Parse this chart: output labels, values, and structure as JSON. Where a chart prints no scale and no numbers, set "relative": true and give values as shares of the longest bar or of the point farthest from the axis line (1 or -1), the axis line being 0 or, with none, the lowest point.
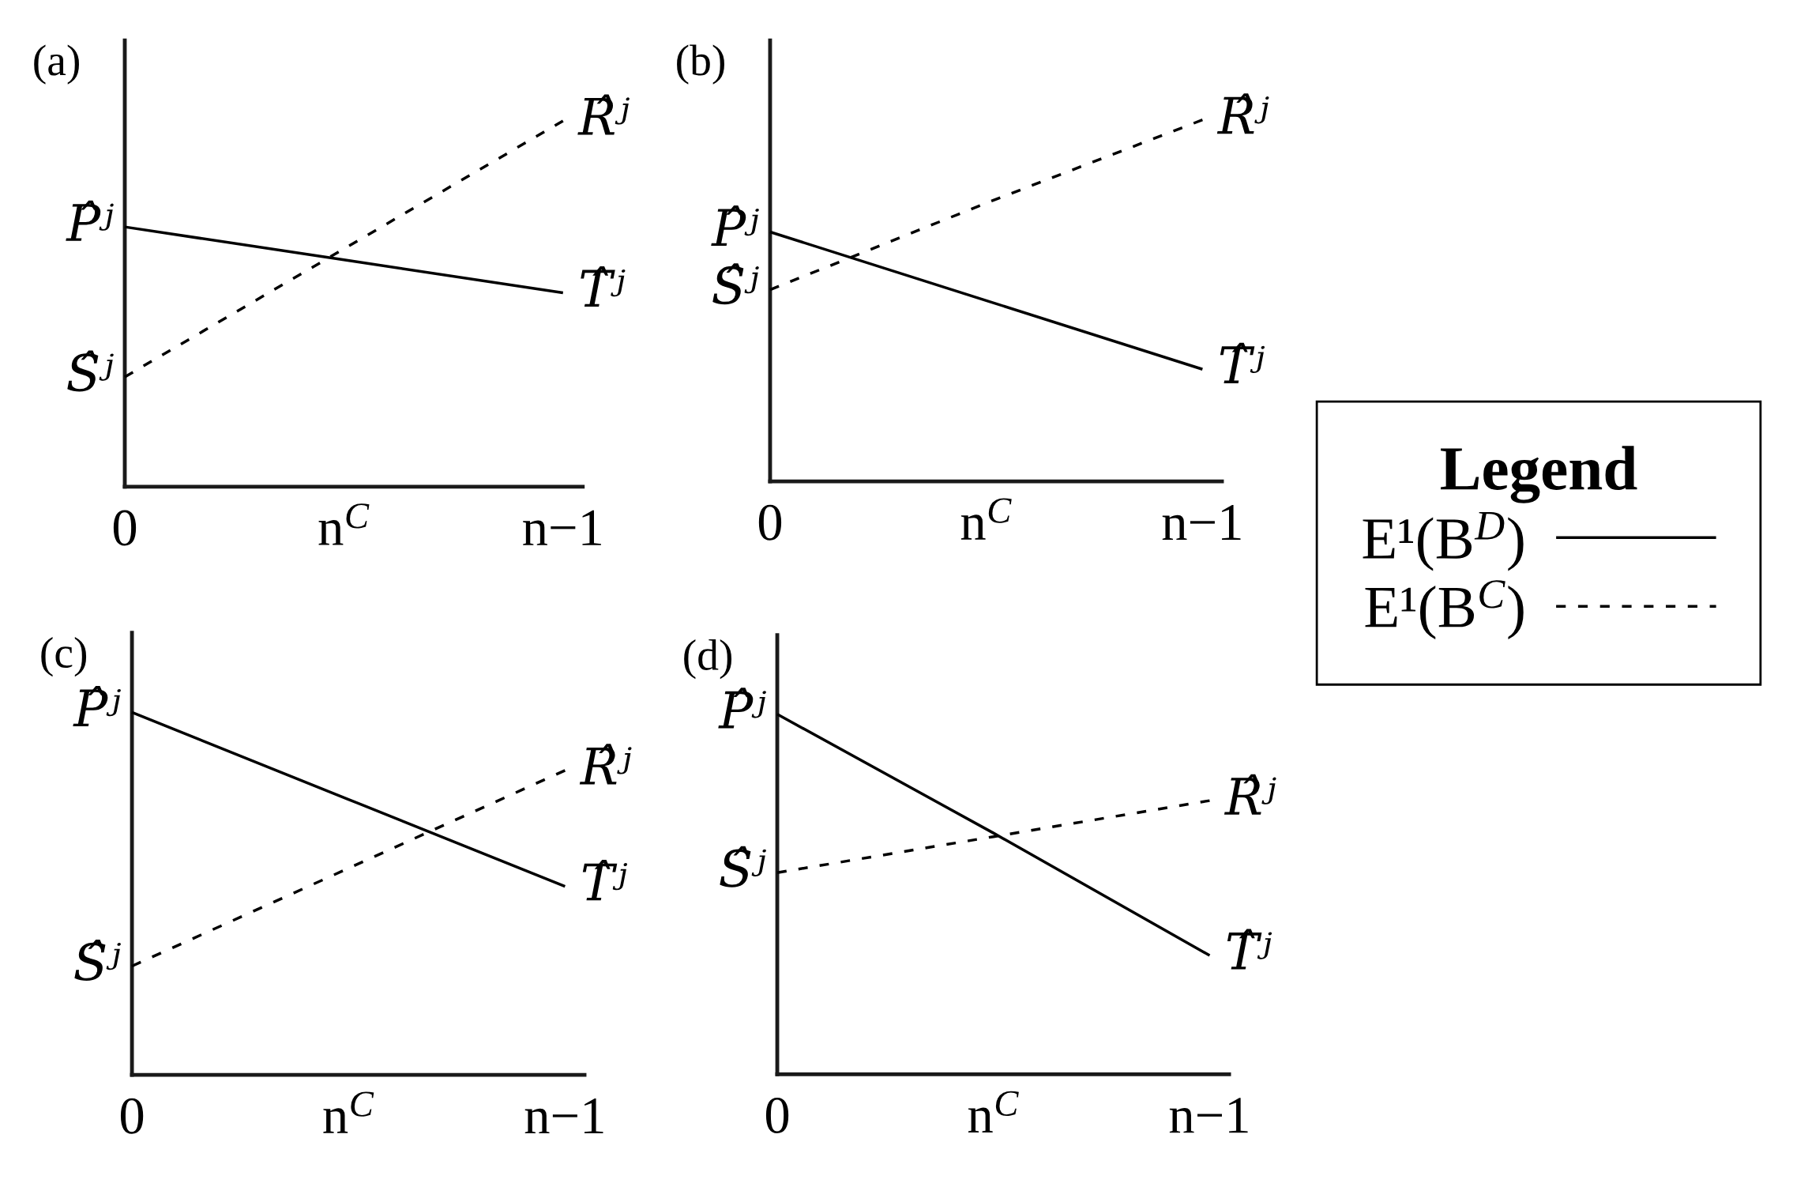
{
  "chart_data": [
    {
      "type": "line",
      "title": "(a)",
      "relative": true,
      "tick_labels": "x",
      "categories": [
        "0",
        "n$^{C}$",
        "n−1"
      ],
      "series": [
        {
          "color": "#000000",
          "line_style": "solid",
          "values": [
            0.71,
            0.62,
            0.53
          ]
        },
        {
          "color": "#000000",
          "line_style": "dashed",
          "values": [
            0.3,
            0.65,
            1
          ]
        }
      ],
      "annotations": [
        {
          "text": "P̂ʲ",
          "x": "0",
          "y": 0.71
        },
        {
          "text": "Ŝʲ",
          "x": "0",
          "y": 0.3
        },
        {
          "text": "R̂ʲ",
          "x": "n−1",
          "y": 1
        },
        {
          "text": "T̂ʲ",
          "x": "n−1",
          "y": 0.53
        }
      ]
    },
    {
      "type": "line",
      "title": "(b)",
      "relative": true,
      "tick_labels": "x",
      "categories": [
        "0",
        "n$^{C}$",
        "n−1"
      ],
      "legend": "right",
      "legend_title": "Legend",
      "series": [
        {
          "name": "E¹(B$^{D}$)",
          "color": "#000000",
          "line_style": "solid",
          "values": [
            0.69,
            0.5,
            0.31
          ]
        },
        {
          "name": "E¹(B$^{C}$)",
          "color": "#000000",
          "line_style": "dashed",
          "values": [
            0.53,
            0.77,
            1
          ]
        }
      ],
      "annotations": [
        {
          "text": "P̂ʲ",
          "x": "0",
          "y": 0.69
        },
        {
          "text": "Ŝʲ",
          "x": "0",
          "y": 0.53
        },
        {
          "text": "R̂ʲ",
          "x": "n−1",
          "y": 1
        },
        {
          "text": "T̂ʲ",
          "x": "n−1",
          "y": 0.31
        }
      ]
    },
    {
      "type": "line",
      "title": "(c)",
      "relative": true,
      "tick_labels": "x",
      "categories": [
        "0",
        "n$^{C}$",
        "n−1"
      ],
      "series": [
        {
          "color": "#000000",
          "line_style": "solid",
          "values": [
            1,
            0.76,
            0.52
          ]
        },
        {
          "color": "#000000",
          "line_style": "dashed",
          "values": [
            0.3,
            0.57,
            0.84
          ]
        }
      ],
      "annotations": [
        {
          "text": "P̂ʲ",
          "x": "0",
          "y": 1
        },
        {
          "text": "Ŝʲ",
          "x": "0",
          "y": 0.3
        },
        {
          "text": "R̂ʲ",
          "x": "n−1",
          "y": 0.84
        },
        {
          "text": "T̂ʲ",
          "x": "n−1",
          "y": 0.52
        }
      ]
    },
    {
      "type": "line",
      "title": "(d)",
      "relative": true,
      "tick_labels": "x",
      "categories": [
        "0",
        "n$^{C}$",
        "n−1"
      ],
      "series": [
        {
          "color": "#000000",
          "line_style": "solid",
          "values": [
            1,
            0.67,
            0.33
          ]
        },
        {
          "color": "#000000",
          "line_style": "dashed",
          "values": [
            0.56,
            0.66,
            0.76
          ]
        }
      ],
      "annotations": [
        {
          "text": "P̂ʲ",
          "x": "0",
          "y": 1
        },
        {
          "text": "Ŝʲ",
          "x": "0",
          "y": 0.56
        },
        {
          "text": "R̂ʲ",
          "x": "n−1",
          "y": 0.76
        },
        {
          "text": "T̂ʲ",
          "x": "n−1",
          "y": 0.33
        }
      ]
    }
  ]
}
